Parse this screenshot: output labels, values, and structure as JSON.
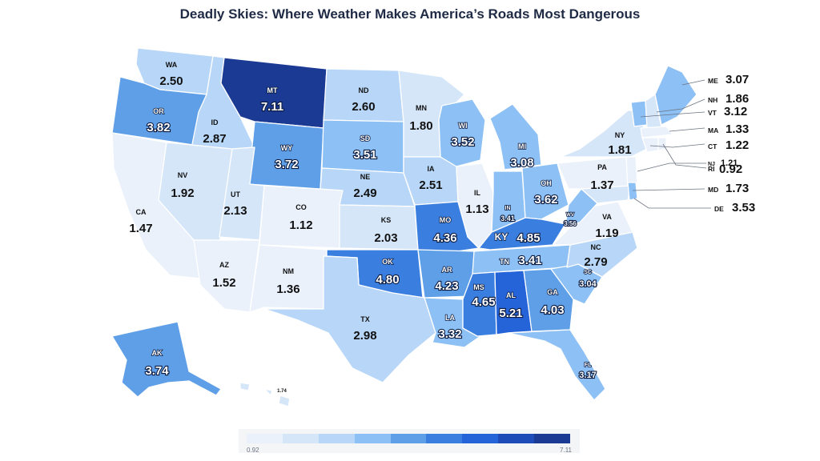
{
  "title": "Deadly Skies: Where Weather Makes America’s Roads Most Dangerous",
  "legend": {
    "min_label": "0.92",
    "max_label": "7.11",
    "min": 0.92,
    "max": 7.11,
    "colors": [
      "#eaf1fb",
      "#d6e6f9",
      "#b8d6f7",
      "#8dc0f4",
      "#5e9fe8",
      "#3a7fe0",
      "#2563d9",
      "#1d4bb8",
      "#1a3a94"
    ]
  },
  "states": {
    "WA": {
      "abbr": "WA",
      "value": "2.50"
    },
    "OR": {
      "abbr": "OR",
      "value": "3.82"
    },
    "CA": {
      "abbr": "CA",
      "value": "1.47"
    },
    "ID": {
      "abbr": "ID",
      "value": "2.87"
    },
    "NV": {
      "abbr": "NV",
      "value": "1.92"
    },
    "MT": {
      "abbr": "MT",
      "value": "7.11"
    },
    "WY": {
      "abbr": "WY",
      "value": "3.72"
    },
    "UT": {
      "abbr": "UT",
      "value": "2.13"
    },
    "AZ": {
      "abbr": "AZ",
      "value": "1.52"
    },
    "CO": {
      "abbr": "CO",
      "value": "1.12"
    },
    "NM": {
      "abbr": "NM",
      "value": "1.36"
    },
    "ND": {
      "abbr": "ND",
      "value": "2.60"
    },
    "SD": {
      "abbr": "SD",
      "value": "3.51"
    },
    "NE": {
      "abbr": "NE",
      "value": "2.49"
    },
    "KS": {
      "abbr": "KS",
      "value": "2.03"
    },
    "OK": {
      "abbr": "OK",
      "value": "4.80"
    },
    "TX": {
      "abbr": "TX",
      "value": "2.98"
    },
    "MN": {
      "abbr": "MN",
      "value": "1.80"
    },
    "IA": {
      "abbr": "IA",
      "value": "2.51"
    },
    "MO": {
      "abbr": "MO",
      "value": "4.36"
    },
    "AR": {
      "abbr": "AR",
      "value": "4.23"
    },
    "LA": {
      "abbr": "LA",
      "value": "3.32"
    },
    "WI": {
      "abbr": "WI",
      "value": "3.52"
    },
    "IL": {
      "abbr": "IL",
      "value": "1.13"
    },
    "MI": {
      "abbr": "MI",
      "value": "3.08"
    },
    "IN": {
      "abbr": "IN",
      "value": "3.41"
    },
    "OH": {
      "abbr": "OH",
      "value": "3.62"
    },
    "KY": {
      "abbr": "KY",
      "value": "4.85"
    },
    "TN": {
      "abbr": "TN",
      "value": "3.41"
    },
    "MS": {
      "abbr": "MS",
      "value": "4.65"
    },
    "AL": {
      "abbr": "AL",
      "value": "5.21"
    },
    "GA": {
      "abbr": "GA",
      "value": "4.03"
    },
    "FL": {
      "abbr": "FL",
      "value": "3.17"
    },
    "SC": {
      "abbr": "SC",
      "value": "3.04"
    },
    "NC": {
      "abbr": "NC",
      "value": "2.79"
    },
    "VA": {
      "abbr": "VA",
      "value": "1.19"
    },
    "WV": {
      "abbr": "WV",
      "value": "3.56"
    },
    "PA": {
      "abbr": "PA",
      "value": "1.37"
    },
    "NY": {
      "abbr": "NY",
      "value": "1.81"
    },
    "AK": {
      "abbr": "AK",
      "value": "3.74"
    },
    "HI": {
      "abbr": "HI",
      "value": "1.74"
    },
    "ME": {
      "abbr": "ME",
      "value": "3.07"
    },
    "NH": {
      "abbr": "NH",
      "value": "1.86"
    },
    "VT": {
      "abbr": "VT",
      "value": "3.12"
    },
    "MA": {
      "abbr": "MA",
      "value": "1.33"
    },
    "CT": {
      "abbr": "CT",
      "value": "1.22"
    },
    "RI": {
      "abbr": "RI",
      "value": "0.92"
    },
    "NJ": {
      "abbr": "NJ",
      "value": "1.21"
    },
    "MD": {
      "abbr": "MD",
      "value": "1.73"
    },
    "DE": {
      "abbr": "DE",
      "value": "3.53"
    }
  }
}
